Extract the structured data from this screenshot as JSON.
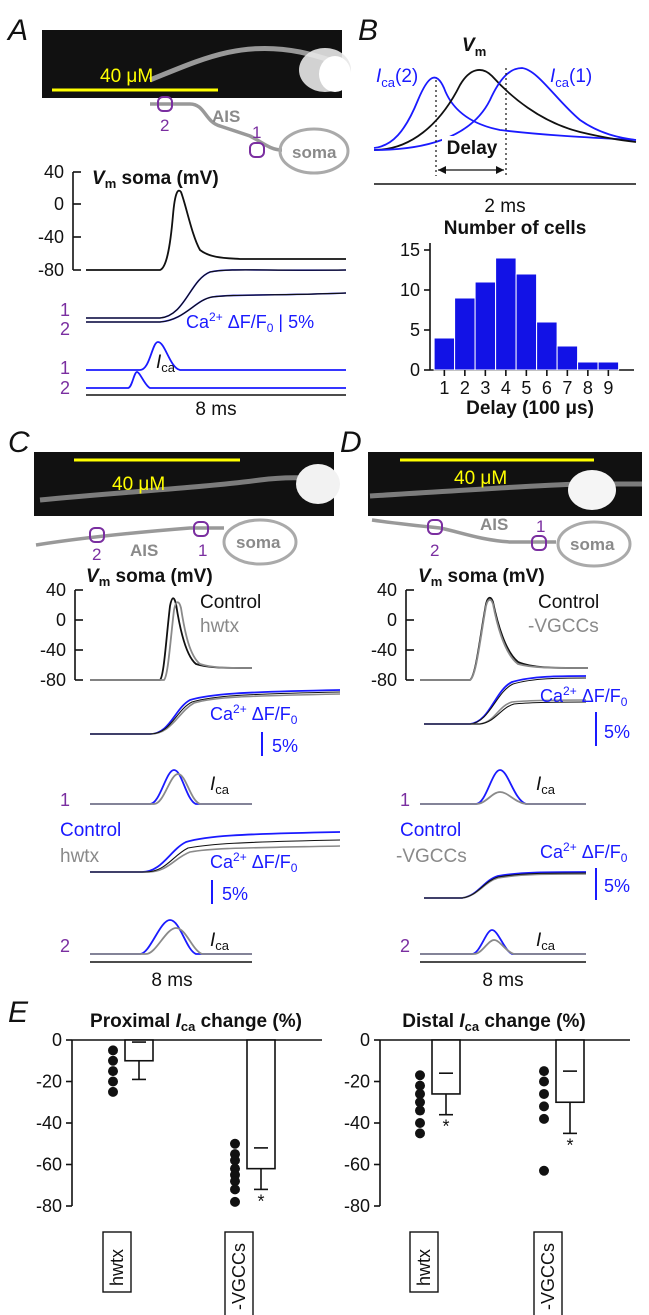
{
  "panels": {
    "A": {
      "letter": "A",
      "scalebar": "40 μM",
      "ais": "AIS",
      "soma": "soma",
      "site1": "1",
      "site2": "2",
      "vm_title": "soma (mV)",
      "vm_title_var": "V",
      "vm_title_sub": "m",
      "vm_ticks": [
        "40",
        "0",
        "-40",
        "-80"
      ],
      "ca_label": "Ca",
      "ca_sup": "2+",
      "ca_rest": " ΔF/F",
      "ca_sub0": "0",
      "ca_scale": " | 5%",
      "row1": "1",
      "row2": "2",
      "ica_var": "I",
      "ica_sub": "ca",
      "time_scale": "8 ms"
    },
    "B": {
      "letter": "B",
      "vm_var": "V",
      "vm_sub": "m",
      "ica2_var": "I",
      "ica2_sub": "ca",
      "ica2_suffix": "(2)",
      "ica1_var": "I",
      "ica1_sub": "ca",
      "ica1_suffix": "(1)",
      "delay_label": "Delay",
      "time_scale": "2 ms"
    },
    "C": {
      "letter": "C",
      "scalebar": "40 μM",
      "ais": "AIS",
      "soma": "soma",
      "site1": "1",
      "site2": "2",
      "vm_title": "soma (mV)",
      "vm_title_var": "V",
      "vm_title_sub": "m",
      "vm_ticks": [
        "40",
        "0",
        "-40",
        "-80"
      ],
      "legend_black": "Control",
      "legend_grey": "hwtx",
      "legend_blue": "Control",
      "legend_grey2": "hwtx",
      "ca_label": "Ca",
      "ca_sup": "2+",
      "ca_rest": " ΔF/F",
      "ca_sub0": "0",
      "ca_scale": "5%",
      "row1": "1",
      "row2": "2",
      "ica_var": "I",
      "ica_sub": "ca",
      "time_scale": "8 ms"
    },
    "D": {
      "letter": "D",
      "scalebar": "40 μM",
      "ais": "AIS",
      "soma": "soma",
      "site1": "1",
      "site2": "2",
      "vm_title": "soma (mV)",
      "vm_title_var": "V",
      "vm_title_sub": "m",
      "vm_ticks": [
        "40",
        "0",
        "-40",
        "-80"
      ],
      "legend_black": "Control",
      "legend_grey": "-VGCCs",
      "legend_blue": "Control",
      "legend_grey2": "-VGCCs",
      "ca_label": "Ca",
      "ca_sup": "2+",
      "ca_rest": " ΔF/F",
      "ca_sub0": "0",
      "ca_scale": "5%",
      "row1": "1",
      "row2": "2",
      "ica_var": "I",
      "ica_sub": "ca",
      "time_scale": "8 ms"
    },
    "E": {
      "letter": "E"
    }
  },
  "colors": {
    "black_trace": "#111111",
    "blue": "#1a1aff",
    "grey": "#8a8a8a",
    "purple": "#7a2ea0",
    "bar_fill": "#1212e6",
    "scalebar": "#ffff00"
  },
  "chart_data": [
    {
      "type": "bar",
      "title": "Number of cells",
      "xlabel": "Delay (100 μs)",
      "ylabel": "",
      "categories": [
        "1",
        "2",
        "3",
        "4",
        "5",
        "6",
        "7",
        "8",
        "9"
      ],
      "bins": [
        [
          0.5,
          1.5
        ],
        [
          1.5,
          2.5
        ],
        [
          2.5,
          3.5
        ],
        [
          3.5,
          4.5
        ],
        [
          4.5,
          5.5
        ],
        [
          5.5,
          6.5
        ],
        [
          6.5,
          7.5
        ],
        [
          7.5,
          8.5
        ],
        [
          8.5,
          9.5
        ]
      ],
      "values": [
        4,
        9,
        11,
        14,
        12,
        6,
        3,
        1,
        1
      ],
      "yticks": [
        "0",
        "5",
        "10",
        "15"
      ],
      "ylim": [
        0,
        16
      ]
    },
    {
      "type": "bar",
      "title_prefix": "Proximal ",
      "title_var": "I",
      "title_sub": "ca",
      "title_suffix": " change (%)",
      "categories": [
        "hwtx",
        "-VGCCs"
      ],
      "means": [
        -10,
        -62
      ],
      "errors": [
        9,
        10
      ],
      "points": [
        [
          -5,
          -10,
          -15,
          -20,
          -25
        ],
        [
          -50,
          -55,
          -58,
          -62,
          -65,
          -68,
          -72,
          -78
        ]
      ],
      "significance": [
        "",
        "*"
      ],
      "yticks": [
        "0",
        "-20",
        "-40",
        "-60",
        "-80"
      ],
      "ylim": [
        -80,
        0
      ]
    },
    {
      "type": "bar",
      "title_prefix": "Distal ",
      "title_var": "I",
      "title_sub": "ca",
      "title_suffix": " change (%)",
      "categories": [
        "hwtx",
        "-VGCCs"
      ],
      "means": [
        -26,
        -30
      ],
      "errors": [
        10,
        15
      ],
      "points": [
        [
          -17,
          -22,
          -26,
          -30,
          -34,
          -40,
          -45
        ],
        [
          -15,
          -20,
          -26,
          -32,
          -38,
          -63
        ]
      ],
      "significance": [
        "*",
        "*"
      ],
      "yticks": [
        "0",
        "-20",
        "-40",
        "-60",
        "-80"
      ],
      "ylim": [
        -80,
        0
      ]
    }
  ]
}
